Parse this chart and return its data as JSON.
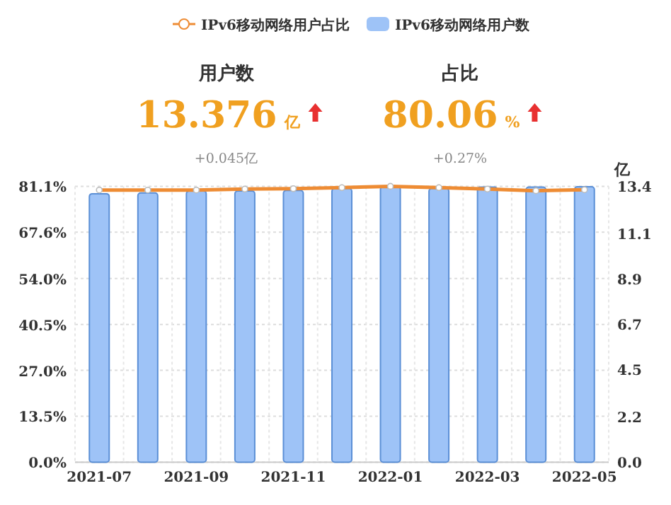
{
  "chart_data": {
    "type": "bar",
    "categories": [
      "2021-07",
      null,
      "2021-09",
      null,
      "2021-11",
      null,
      "2022-01",
      null,
      "2022-03",
      null,
      "2022-05"
    ],
    "series": [
      {
        "name": "IPv6移动网络用户占比",
        "type": "line",
        "axis": "y",
        "color": "#ee8c34",
        "marker": "circle",
        "line_style": "solid",
        "values": [
          80.0,
          80.0,
          80.0,
          80.3,
          80.4,
          80.7,
          81.1,
          80.7,
          80.3,
          79.8,
          80.1
        ]
      },
      {
        "name": "IPv6移动网络用户数",
        "axis": "y2",
        "color": "#9ec3f7",
        "values": [
          13.04,
          13.08,
          13.17,
          13.17,
          13.2,
          13.29,
          13.4,
          13.29,
          13.36,
          13.36,
          13.38
        ]
      }
    ],
    "ylim": [
      0,
      81.1
    ],
    "yticks": [
      {
        "value": 0,
        "label": "0.0%"
      },
      {
        "value": 13.5,
        "label": "13.5%"
      },
      {
        "value": 27.0,
        "label": "27.0%"
      },
      {
        "value": 40.5,
        "label": "40.5%"
      },
      {
        "value": 54.0,
        "label": "54.0%"
      },
      {
        "value": 67.6,
        "label": "67.6%"
      },
      {
        "value": 81.1,
        "label": "81.1%"
      }
    ],
    "y2lim": [
      0,
      13.4
    ],
    "y2ticks": [
      {
        "value": 0,
        "label": "0.0"
      },
      2.2,
      4.5,
      6.7,
      8.9,
      11.1,
      13.4
    ],
    "y2label": "亿",
    "grid": true,
    "legend": "top",
    "annotations": [
      "用户数",
      "13.376",
      "亿",
      "+0.045亿",
      "占比",
      "80.06",
      "%",
      "+0.27%"
    ]
  }
}
